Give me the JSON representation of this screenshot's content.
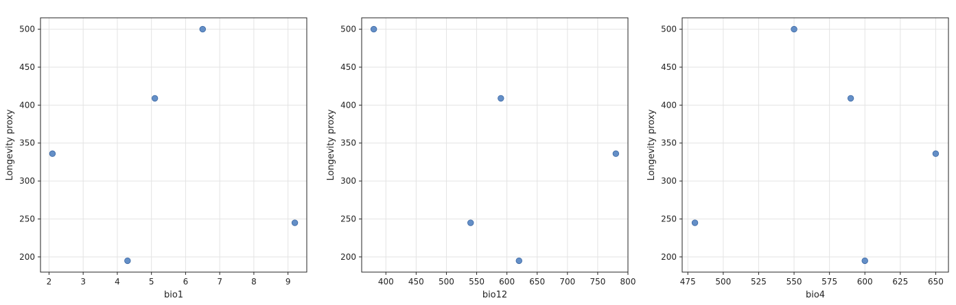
{
  "chart_data": [
    {
      "type": "scatter",
      "xlabel": "bio1",
      "ylabel": "Longevity proxy",
      "xlim": [
        1.75,
        9.55
      ],
      "ylim": [
        180,
        515
      ],
      "xticks": [
        2,
        3,
        4,
        5,
        6,
        7,
        8,
        9
      ],
      "yticks": [
        200,
        250,
        300,
        350,
        400,
        450,
        500
      ],
      "grid": true,
      "marker_color": "#4f7fbf",
      "points": [
        {
          "x": 2.1,
          "y": 336
        },
        {
          "x": 4.3,
          "y": 195
        },
        {
          "x": 5.1,
          "y": 409
        },
        {
          "x": 6.5,
          "y": 500
        },
        {
          "x": 9.2,
          "y": 245
        }
      ]
    },
    {
      "type": "scatter",
      "xlabel": "bio12",
      "ylabel": "Longevity proxy",
      "xlim": [
        360,
        800
      ],
      "ylim": [
        180,
        515
      ],
      "xticks": [
        400,
        450,
        500,
        550,
        600,
        650,
        700,
        750,
        800
      ],
      "yticks": [
        200,
        250,
        300,
        350,
        400,
        450,
        500
      ],
      "grid": true,
      "marker_color": "#4f7fbf",
      "points": [
        {
          "x": 380,
          "y": 500
        },
        {
          "x": 540,
          "y": 245
        },
        {
          "x": 590,
          "y": 409
        },
        {
          "x": 620,
          "y": 195
        },
        {
          "x": 780,
          "y": 336
        }
      ]
    },
    {
      "type": "scatter",
      "xlabel": "bio4",
      "ylabel": "Longevity proxy",
      "xlim": [
        471,
        659
      ],
      "ylim": [
        180,
        515
      ],
      "xticks": [
        475,
        500,
        525,
        550,
        575,
        600,
        625,
        650
      ],
      "yticks": [
        200,
        250,
        300,
        350,
        400,
        450,
        500
      ],
      "grid": true,
      "marker_color": "#4f7fbf",
      "points": [
        {
          "x": 480,
          "y": 245
        },
        {
          "x": 550,
          "y": 500
        },
        {
          "x": 590,
          "y": 409
        },
        {
          "x": 600,
          "y": 195
        },
        {
          "x": 650,
          "y": 336
        }
      ]
    }
  ]
}
